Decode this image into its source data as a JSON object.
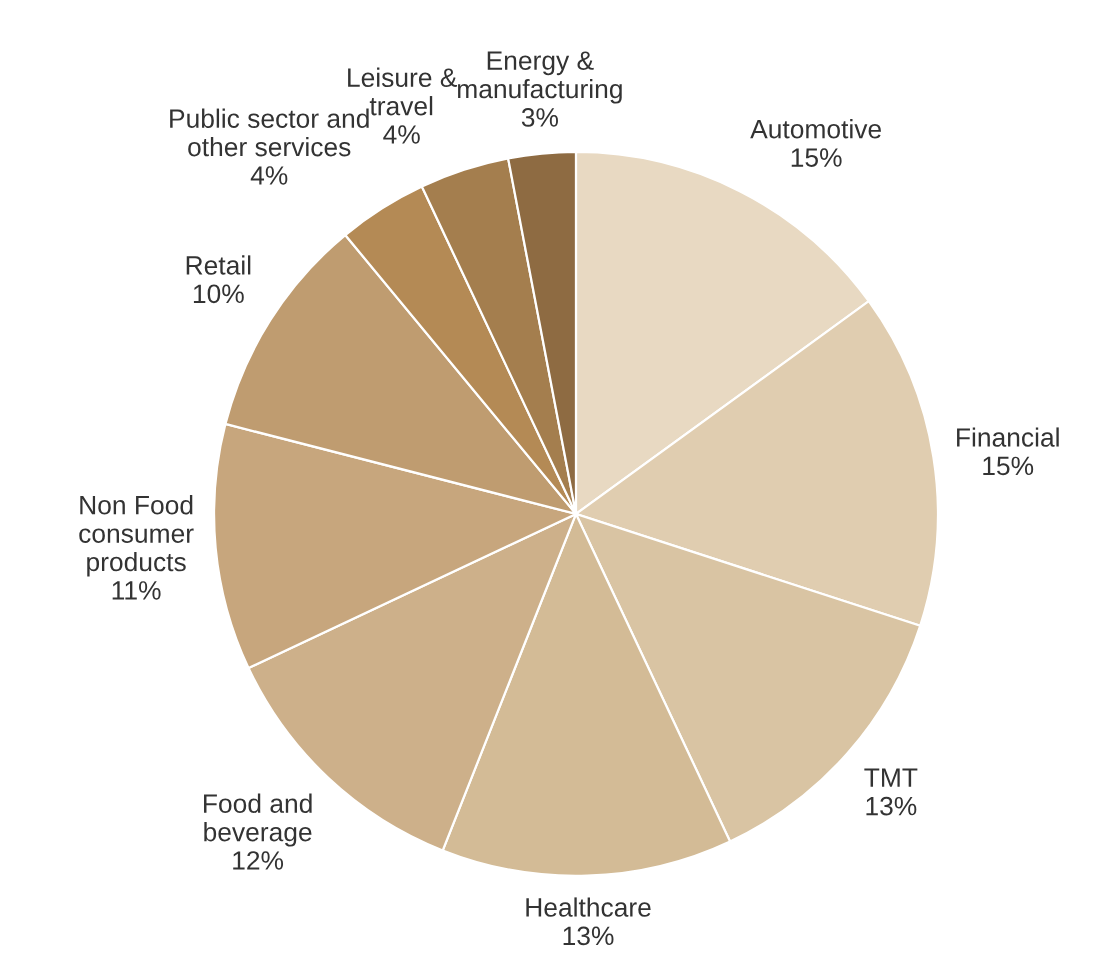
{
  "chart_data": {
    "type": "pie",
    "categories": [
      "Automotive",
      "Financial",
      "TMT",
      "Healthcare",
      "Food and\nbeverage",
      "Non Food\nconsumer\nproducts",
      "Retail",
      "Public sector and\nother services",
      "Leisure &\ntravel",
      "Energy &\nmanufacturing"
    ],
    "values": [
      15,
      15,
      13,
      13,
      12,
      11,
      10,
      4,
      4,
      3
    ],
    "value_labels": [
      "15%",
      "15%",
      "13%",
      "13%",
      "12%",
      "11%",
      "10%",
      "4%",
      "4%",
      "3%"
    ],
    "colors": [
      "#e8d9c2",
      "#e0cdb0",
      "#d9c4a3",
      "#d3bb96",
      "#cdb08a",
      "#c7a67d",
      "#bf9c70",
      "#b48a55",
      "#a47e4e",
      "#8e6b42"
    ]
  }
}
